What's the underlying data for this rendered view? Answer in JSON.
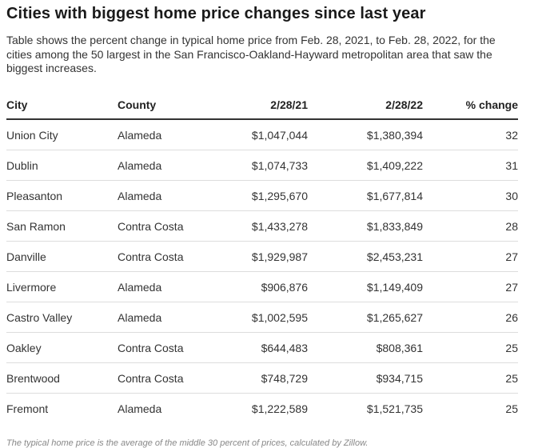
{
  "title": "Cities with biggest home price changes since last year",
  "subtitle": "Table shows the percent change in typical home price from Feb. 28, 2021, to Feb. 28, 2022, for the cities among the 50 largest in the San Francisco-Oakland-Hayward metropolitan area that saw the biggest increases.",
  "chart_data": {
    "type": "table",
    "columns": [
      "City",
      "County",
      "2/28/21",
      "2/28/22",
      "% change"
    ],
    "rows": [
      [
        "Union City",
        "Alameda",
        "$1,047,044",
        "$1,380,394",
        "32"
      ],
      [
        "Dublin",
        "Alameda",
        "$1,074,733",
        "$1,409,222",
        "31"
      ],
      [
        "Pleasanton",
        "Alameda",
        "$1,295,670",
        "$1,677,814",
        "30"
      ],
      [
        "San Ramon",
        "Contra Costa",
        "$1,433,278",
        "$1,833,849",
        "28"
      ],
      [
        "Danville",
        "Contra Costa",
        "$1,929,987",
        "$2,453,231",
        "27"
      ],
      [
        "Livermore",
        "Alameda",
        "$906,876",
        "$1,149,409",
        "27"
      ],
      [
        "Castro Valley",
        "Alameda",
        "$1,002,595",
        "$1,265,627",
        "26"
      ],
      [
        "Oakley",
        "Contra Costa",
        "$644,483",
        "$808,361",
        "25"
      ],
      [
        "Brentwood",
        "Contra Costa",
        "$748,729",
        "$934,715",
        "25"
      ],
      [
        "Fremont",
        "Alameda",
        "$1,222,589",
        "$1,521,735",
        "25"
      ]
    ]
  },
  "footnote": "The typical home price is the average of the middle 30 percent of prices, calculated by Zillow."
}
